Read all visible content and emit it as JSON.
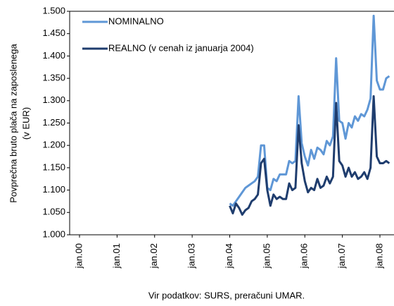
{
  "chart_data": {
    "type": "line",
    "y_label": [
      "Povprečna bruto plača na zaposlenega",
      "(v EUR)"
    ],
    "source": "Vir podatkov: SURS, preračuni UMAR.",
    "categories": [
      "jan.00",
      null,
      null,
      null,
      null,
      null,
      null,
      null,
      null,
      null,
      null,
      null,
      "jan.01",
      null,
      null,
      null,
      null,
      null,
      null,
      null,
      null,
      null,
      null,
      null,
      "jan.02",
      null,
      null,
      null,
      null,
      null,
      null,
      null,
      null,
      null,
      null,
      null,
      "jan.03",
      null,
      null,
      null,
      null,
      null,
      null,
      null,
      null,
      null,
      null,
      null,
      "jan.04",
      null,
      null,
      null,
      null,
      null,
      null,
      null,
      null,
      null,
      null,
      null,
      "jan.05",
      null,
      null,
      null,
      null,
      null,
      null,
      null,
      null,
      null,
      null,
      null,
      "jan.06",
      null,
      null,
      null,
      null,
      null,
      null,
      null,
      null,
      null,
      null,
      null,
      "jan.07",
      null,
      null,
      null,
      null,
      null,
      null,
      null,
      null,
      null,
      null,
      null,
      "jan.08",
      null,
      null,
      null
    ],
    "series": [
      {
        "name": "NOMINALNO",
        "color": "#5f97d6",
        "values": [
          null,
          null,
          null,
          null,
          null,
          null,
          null,
          null,
          null,
          null,
          null,
          null,
          null,
          null,
          null,
          null,
          null,
          null,
          null,
          null,
          null,
          null,
          null,
          null,
          null,
          null,
          null,
          null,
          null,
          null,
          null,
          null,
          null,
          null,
          null,
          null,
          null,
          null,
          null,
          null,
          null,
          null,
          null,
          null,
          null,
          null,
          null,
          null,
          1070,
          1065,
          1075,
          1085,
          1095,
          1105,
          1110,
          1115,
          1120,
          1130,
          1200,
          1200,
          1105,
          1100,
          1125,
          1120,
          1135,
          1135,
          1135,
          1165,
          1160,
          1165,
          1310,
          1205,
          1175,
          1155,
          1190,
          1170,
          1195,
          1190,
          1180,
          1210,
          1200,
          1220,
          1395,
          1255,
          1250,
          1215,
          1250,
          1240,
          1265,
          1255,
          1270,
          1265,
          1280,
          1305,
          1490,
          1345,
          1325,
          1325,
          1350,
          1355
        ]
      },
      {
        "name": "REALNO (v cenah iz januarja 2004)",
        "color": "#1f3d6e",
        "values": [
          null,
          null,
          null,
          null,
          null,
          null,
          null,
          null,
          null,
          null,
          null,
          null,
          null,
          null,
          null,
          null,
          null,
          null,
          null,
          null,
          null,
          null,
          null,
          null,
          null,
          null,
          null,
          null,
          null,
          null,
          null,
          null,
          null,
          null,
          null,
          null,
          null,
          null,
          null,
          null,
          null,
          null,
          null,
          null,
          null,
          null,
          null,
          null,
          1065,
          1048,
          1070,
          1060,
          1045,
          1055,
          1060,
          1075,
          1080,
          1090,
          1160,
          1170,
          1100,
          1065,
          1090,
          1080,
          1085,
          1080,
          1080,
          1115,
          1100,
          1105,
          1245,
          1160,
          1120,
          1095,
          1105,
          1100,
          1125,
          1105,
          1110,
          1130,
          1115,
          1130,
          1295,
          1165,
          1155,
          1130,
          1150,
          1130,
          1140,
          1125,
          1130,
          1140,
          1125,
          1150,
          1310,
          1175,
          1160,
          1160,
          1165,
          1160
        ]
      }
    ],
    "ylim": [
      1000,
      1500
    ],
    "yticks": [
      {
        "value": 1000,
        "label": "1.000"
      },
      {
        "value": 1050,
        "label": "1.050"
      },
      {
        "value": 1100,
        "label": "1.100"
      },
      {
        "value": 1150,
        "label": "1.150"
      },
      {
        "value": 1200,
        "label": "1.200"
      },
      {
        "value": 1250,
        "label": "1.250"
      },
      {
        "value": 1300,
        "label": "1.300"
      },
      {
        "value": 1350,
        "label": "1.350"
      },
      {
        "value": 1400,
        "label": "1.400"
      },
      {
        "value": 1450,
        "label": "1.450"
      },
      {
        "value": 1500,
        "label": "1.500"
      }
    ],
    "grid": false
  }
}
